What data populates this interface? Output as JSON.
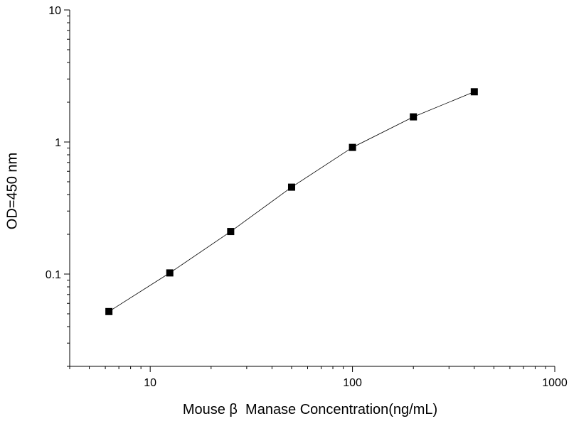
{
  "chart_data": {
    "type": "scatter",
    "title": "",
    "xlabel": "Mouse β  Manase Concentration(ng/mL)",
    "ylabel": "OD=450 nm",
    "x_scale": "log",
    "y_scale": "log",
    "xlim": [
      4,
      1000
    ],
    "ylim": [
      0.02,
      10
    ],
    "x_ticks": [
      {
        "value": 10,
        "label": "10"
      },
      {
        "value": 100,
        "label": "100"
      },
      {
        "value": 1000,
        "label": "1000"
      }
    ],
    "y_ticks": [
      {
        "value": 0.1,
        "label": "0.1"
      },
      {
        "value": 1,
        "label": "1"
      },
      {
        "value": 10,
        "label": "10"
      }
    ],
    "grid": false,
    "legend": "none",
    "series": [
      {
        "marker": "square",
        "connected": true,
        "x": [
          6.25,
          12.5,
          25,
          50,
          100,
          200,
          400
        ],
        "y": [
          0.052,
          0.102,
          0.21,
          0.455,
          0.91,
          1.55,
          2.4
        ]
      }
    ],
    "colors": {
      "marker": "#000000",
      "line": "#000000"
    }
  }
}
